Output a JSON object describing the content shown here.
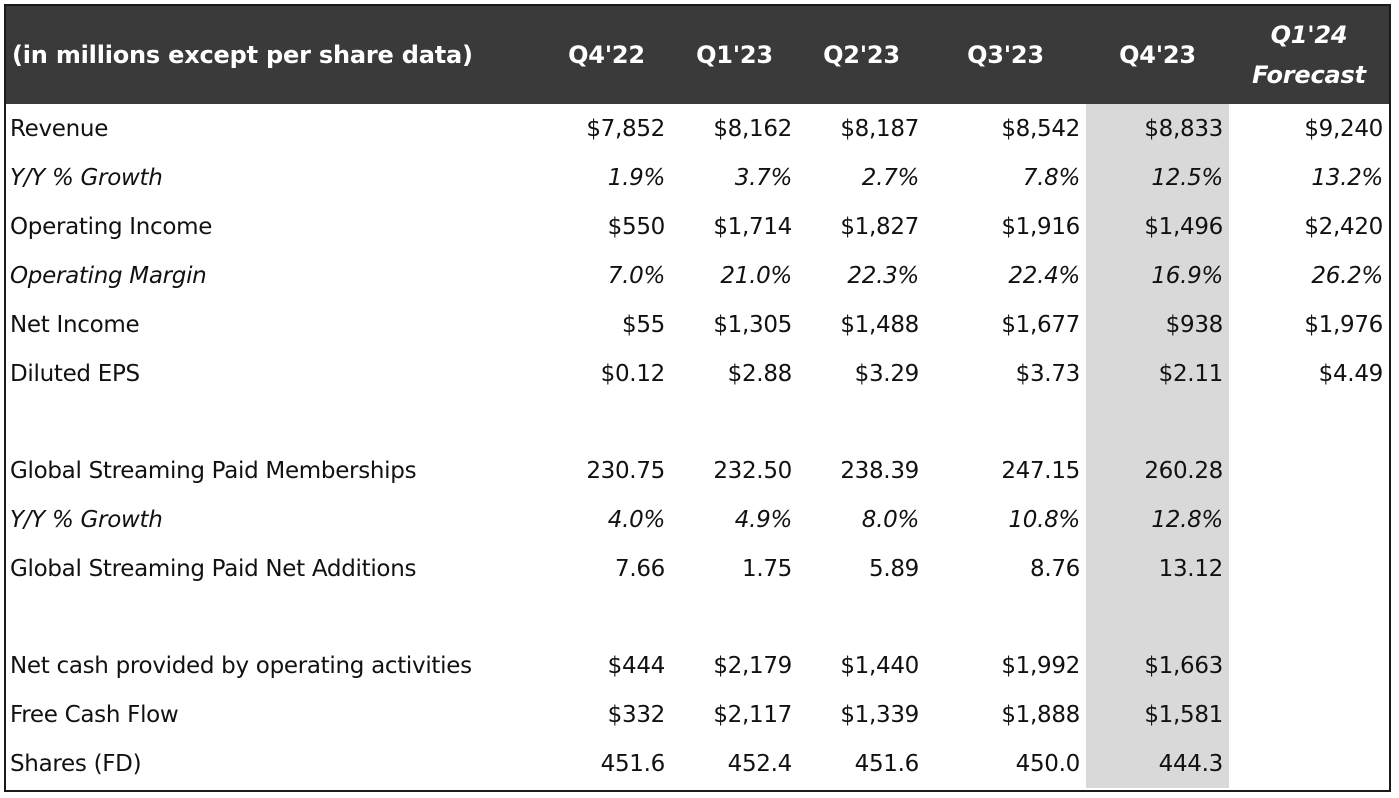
{
  "table": {
    "header_label": "(in millions except per share data)",
    "columns": [
      "Q4'22",
      "Q1'23",
      "Q2'23",
      "Q3'23",
      "Q4'23"
    ],
    "forecast_column": {
      "line1": "Q1'24",
      "line2": "Forecast"
    },
    "highlight_column": "Q4'23",
    "highlight_color": "#d9d9d9",
    "header_color": "#3a3a3a",
    "rows": [
      {
        "label": "Revenue",
        "style": "normal",
        "values": [
          "$7,852",
          "$8,162",
          "$8,187",
          "$8,542",
          "$8,833",
          "$9,240"
        ]
      },
      {
        "label": "Y/Y % Growth",
        "style": "italic",
        "values": [
          "1.9%",
          "3.7%",
          "2.7%",
          "7.8%",
          "12.5%",
          "13.2%"
        ]
      },
      {
        "label": "Operating Income",
        "style": "normal",
        "values": [
          "$550",
          "$1,714",
          "$1,827",
          "$1,916",
          "$1,496",
          "$2,420"
        ]
      },
      {
        "label": "Operating Margin",
        "style": "italic",
        "values": [
          "7.0%",
          "21.0%",
          "22.3%",
          "22.4%",
          "16.9%",
          "26.2%"
        ]
      },
      {
        "label": "Net Income",
        "style": "normal",
        "values": [
          "$55",
          "$1,305",
          "$1,488",
          "$1,677",
          "$938",
          "$1,976"
        ]
      },
      {
        "label": "Diluted EPS",
        "style": "normal",
        "values": [
          "$0.12",
          "$2.88",
          "$3.29",
          "$3.73",
          "$2.11",
          "$4.49"
        ]
      },
      {
        "label": "",
        "style": "spacer",
        "values": [
          "",
          "",
          "",
          "",
          "",
          ""
        ]
      },
      {
        "label": "Global Streaming Paid Memberships",
        "style": "normal",
        "values": [
          "230.75",
          "232.50",
          "238.39",
          "247.15",
          "260.28",
          ""
        ]
      },
      {
        "label": "Y/Y % Growth",
        "style": "italic",
        "values": [
          "4.0%",
          "4.9%",
          "8.0%",
          "10.8%",
          "12.8%",
          ""
        ]
      },
      {
        "label": "Global Streaming Paid Net Additions",
        "style": "normal",
        "values": [
          "7.66",
          "1.75",
          "5.89",
          "8.76",
          "13.12",
          ""
        ]
      },
      {
        "label": "",
        "style": "spacer",
        "values": [
          "",
          "",
          "",
          "",
          "",
          ""
        ]
      },
      {
        "label": "Net cash provided by operating activities",
        "style": "normal",
        "values": [
          "$444",
          "$2,179",
          "$1,440",
          "$1,992",
          "$1,663",
          ""
        ]
      },
      {
        "label": "Free Cash Flow",
        "style": "normal",
        "values": [
          "$332",
          "$2,117",
          "$1,339",
          "$1,888",
          "$1,581",
          ""
        ]
      },
      {
        "label": "Shares (FD)",
        "style": "normal",
        "values": [
          "451.6",
          "452.4",
          "451.6",
          "450.0",
          "444.3",
          ""
        ]
      }
    ]
  }
}
